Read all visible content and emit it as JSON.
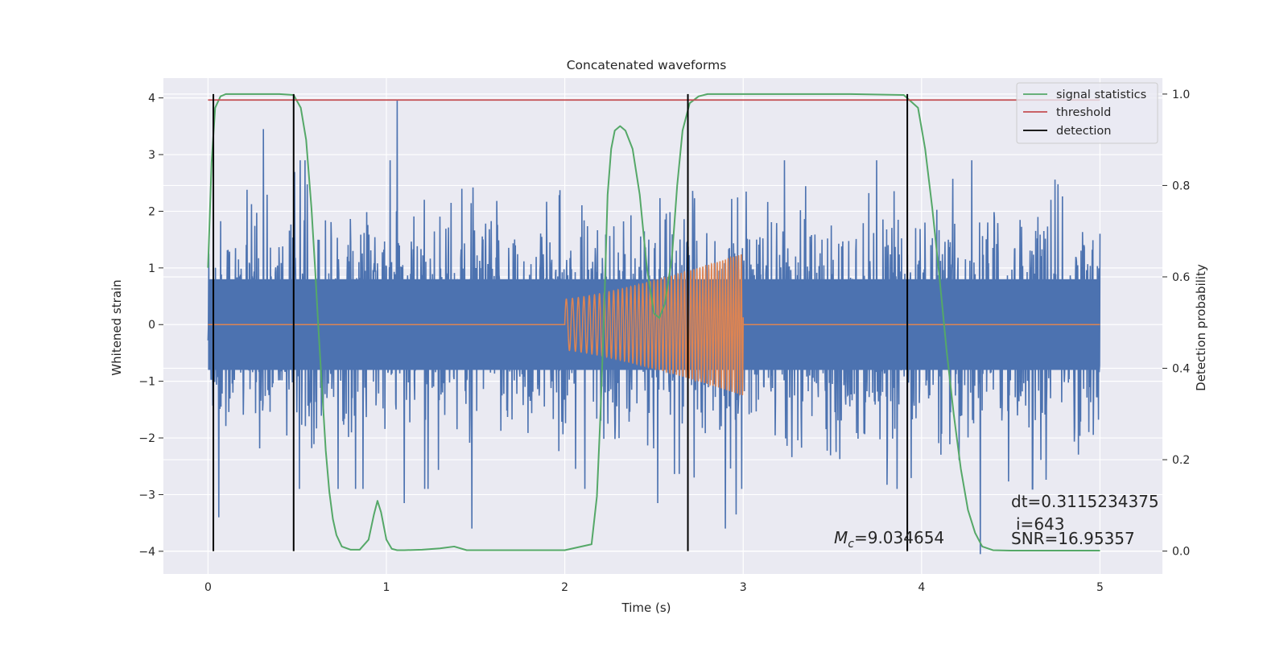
{
  "chart_data": {
    "type": "line",
    "title": "Concatenated waveforms",
    "xlabel": "Time (s)",
    "ylabel": "Whitened strain",
    "y2label": "Detection probability",
    "xlim": [
      -0.25,
      5.35
    ],
    "ylim": [
      -4.4,
      4.35
    ],
    "y2lim": [
      -0.05,
      1.035
    ],
    "x_ticks": [
      0,
      1,
      2,
      3,
      4,
      5
    ],
    "y_ticks": [
      -4,
      -3,
      -2,
      -1,
      0,
      1,
      2,
      3,
      4
    ],
    "y2_ticks": [
      0.0,
      0.2,
      0.4,
      0.6,
      0.8,
      1.0
    ],
    "x_tick_labels": [
      "0",
      "1",
      "2",
      "3",
      "4",
      "5"
    ],
    "y_tick_labels": [
      "−4",
      "−3",
      "−2",
      "−1",
      "0",
      "1",
      "2",
      "3",
      "4"
    ],
    "y2_tick_labels": [
      "0.0",
      "0.2",
      "0.4",
      "0.6",
      "0.8",
      "1.0"
    ],
    "grid": true,
    "legend_position": "top-right",
    "colors": {
      "background": "#eaeaf2",
      "grid": "#ffffff",
      "strain": "#4c72b0",
      "template": "#dd8452",
      "signal_statistics": "#55a868",
      "threshold": "#c44e52",
      "detection": "#000000"
    },
    "series": [
      {
        "name": "",
        "axis": "left",
        "kind": "noisy whitened strain",
        "x_range": [
          0,
          5
        ],
        "typical_range": [
          -2.4,
          2.4
        ],
        "band_abs": 0.8,
        "extremes": [
          {
            "x": 0.06,
            "y": -3.4
          },
          {
            "x": 0.31,
            "y": 3.45
          },
          {
            "x": 1.06,
            "y": 3.95
          },
          {
            "x": 1.1,
            "y": -3.15
          },
          {
            "x": 1.48,
            "y": -3.6
          },
          {
            "x": 2.52,
            "y": -3.15
          },
          {
            "x": 2.9,
            "y": -3.6
          },
          {
            "x": 2.96,
            "y": -3.35
          },
          {
            "x": 4.33,
            "y": -4.05
          },
          {
            "x": 4.62,
            "y": -2.9
          }
        ]
      },
      {
        "name": "",
        "axis": "left",
        "kind": "chirp template",
        "x_range": [
          2.0,
          3.0
        ],
        "start_amplitude": 0.45,
        "end_amplitude": 1.25
      },
      {
        "name": "signal statistics",
        "axis": "right",
        "x": [
          0,
          0.02,
          0.04,
          0.07,
          0.1,
          0.2,
          0.3,
          0.4,
          0.48,
          0.52,
          0.55,
          0.58,
          0.6,
          0.62,
          0.64,
          0.66,
          0.68,
          0.7,
          0.72,
          0.75,
          0.8,
          0.85,
          0.9,
          0.93,
          0.95,
          0.97,
          1.0,
          1.03,
          1.06,
          1.1,
          1.2,
          1.3,
          1.38,
          1.45,
          1.6,
          2.0,
          2.15,
          2.18,
          2.2,
          2.22,
          2.24,
          2.26,
          2.28,
          2.31,
          2.34,
          2.38,
          2.42,
          2.46,
          2.5,
          2.53,
          2.56,
          2.6,
          2.63,
          2.66,
          2.7,
          2.75,
          2.8,
          3.2,
          3.6,
          3.9,
          3.98,
          4.02,
          4.06,
          4.1,
          4.14,
          4.18,
          4.22,
          4.26,
          4.3,
          4.34,
          4.4,
          4.5,
          5.0
        ],
        "y": [
          0.62,
          0.85,
          0.97,
          0.995,
          1.0,
          1.0,
          1.0,
          1.0,
          0.998,
          0.97,
          0.9,
          0.75,
          0.62,
          0.48,
          0.35,
          0.22,
          0.13,
          0.07,
          0.035,
          0.01,
          0.003,
          0.003,
          0.025,
          0.08,
          0.11,
          0.085,
          0.025,
          0.005,
          0.002,
          0.002,
          0.003,
          0.006,
          0.01,
          0.002,
          0.002,
          0.002,
          0.015,
          0.12,
          0.3,
          0.52,
          0.78,
          0.88,
          0.92,
          0.93,
          0.92,
          0.88,
          0.78,
          0.62,
          0.52,
          0.51,
          0.54,
          0.64,
          0.8,
          0.92,
          0.98,
          0.995,
          1.0,
          1.0,
          1.0,
          0.998,
          0.97,
          0.88,
          0.75,
          0.6,
          0.44,
          0.3,
          0.18,
          0.09,
          0.04,
          0.01,
          0.002,
          0.001,
          0.001
        ]
      },
      {
        "name": "threshold",
        "axis": "right",
        "x": [
          0,
          5
        ],
        "y": [
          0.987,
          0.987
        ]
      },
      {
        "name": "detection",
        "axis": "right",
        "kind": "vertical lines",
        "x": [
          0.03,
          0.48,
          2.69,
          3.92
        ],
        "y_range": [
          0.0,
          1.0
        ]
      }
    ],
    "annotations": {
      "mc": {
        "symbol": "M",
        "subscript": "c",
        "value": "=9.034654"
      },
      "dt": "dt=0.3115234375",
      "i": "i=643",
      "snr": "SNR=16.95357"
    }
  }
}
